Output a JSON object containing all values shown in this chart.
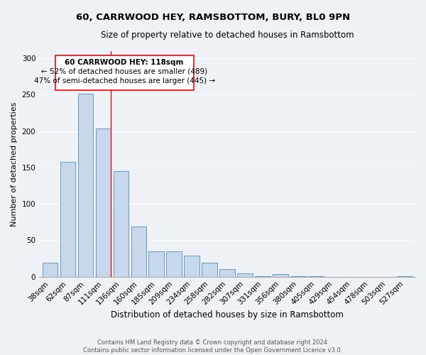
{
  "title": "60, CARRWOOD HEY, RAMSBOTTOM, BURY, BL0 9PN",
  "subtitle": "Size of property relative to detached houses in Ramsbottom",
  "xlabel": "Distribution of detached houses by size in Ramsbottom",
  "ylabel": "Number of detached properties",
  "bar_labels": [
    "38sqm",
    "62sqm",
    "87sqm",
    "111sqm",
    "136sqm",
    "160sqm",
    "185sqm",
    "209sqm",
    "234sqm",
    "258sqm",
    "282sqm",
    "307sqm",
    "331sqm",
    "356sqm",
    "380sqm",
    "405sqm",
    "429sqm",
    "454sqm",
    "478sqm",
    "503sqm",
    "527sqm"
  ],
  "bar_values": [
    19,
    158,
    251,
    204,
    145,
    69,
    35,
    35,
    29,
    19,
    10,
    5,
    1,
    4,
    1,
    1,
    0,
    0,
    0,
    0,
    1
  ],
  "bar_color": "#c8d8ec",
  "bar_edge_color": "#6699bb",
  "annotation_text_line1": "60 CARRWOOD HEY: 118sqm",
  "annotation_text_line2": "← 52% of detached houses are smaller (489)",
  "annotation_text_line3": "47% of semi-detached houses are larger (445) →",
  "red_line_bar_index": 3,
  "ylim": [
    0,
    310
  ],
  "yticks": [
    0,
    50,
    100,
    150,
    200,
    250,
    300
  ],
  "background_color": "#eef2f7",
  "grid_color": "#ffffff",
  "footer_line1": "Contains HM Land Registry data © Crown copyright and database right 2024.",
  "footer_line2": "Contains public sector information licensed under the Open Government Licence v3.0.",
  "title_fontsize": 9.5,
  "subtitle_fontsize": 8.5,
  "xlabel_fontsize": 8.5,
  "ylabel_fontsize": 8,
  "tick_fontsize": 7.5,
  "annotation_fontsize": 7.5,
  "footer_fontsize": 6.0
}
